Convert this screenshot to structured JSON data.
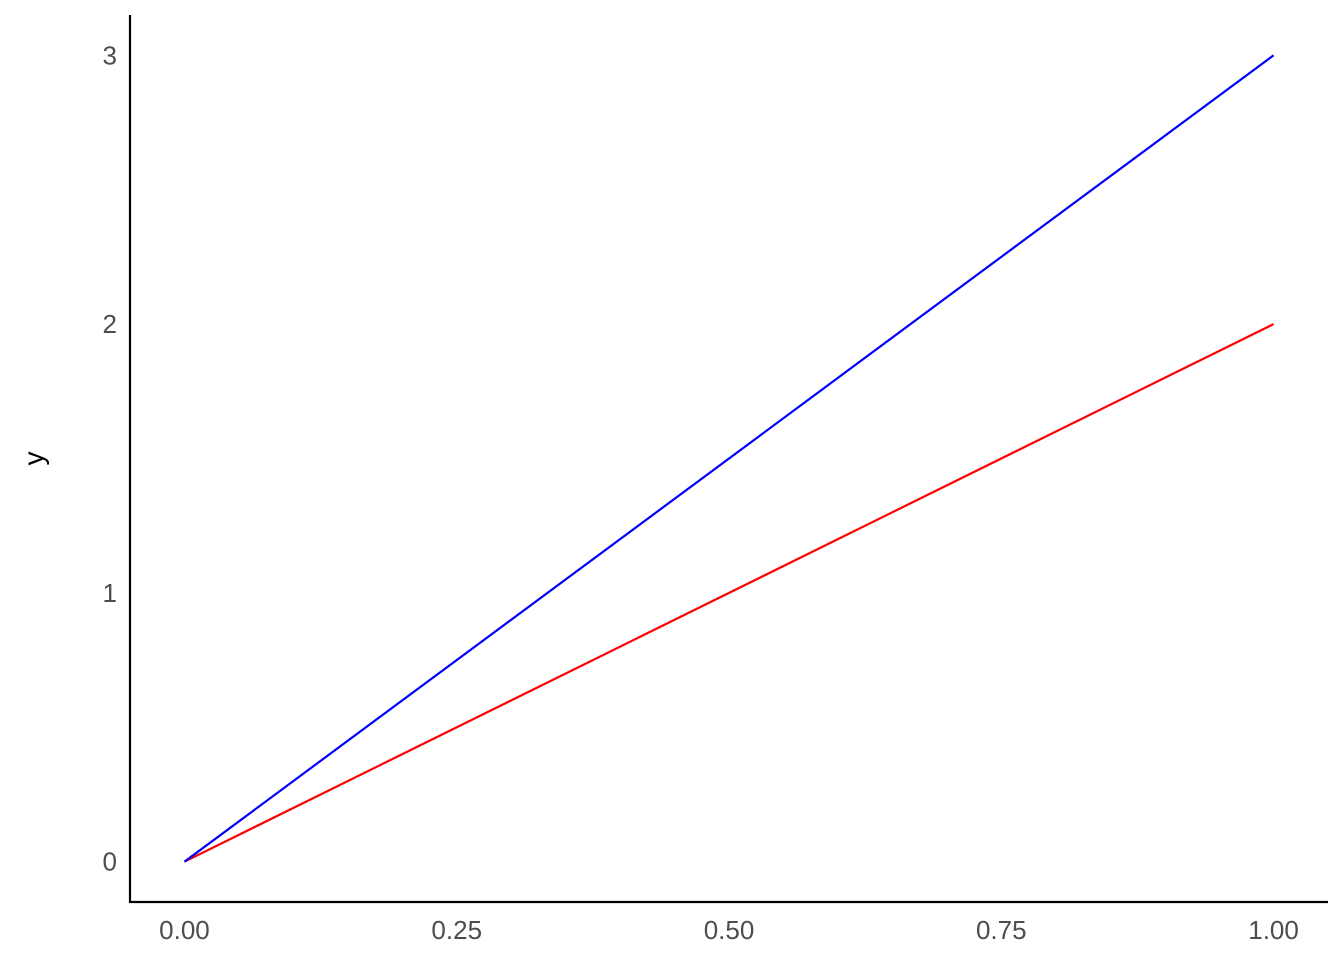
{
  "chart_data": {
    "type": "line",
    "title": "",
    "xlabel": "",
    "ylabel": "y",
    "xlim": [
      -0.05,
      1.05
    ],
    "ylim": [
      -0.15,
      3.15
    ],
    "x_ticks": [
      0,
      0.25,
      0.5,
      0.75,
      1
    ],
    "x_tick_labels": [
      "0.00",
      "0.25",
      "0.50",
      "0.75",
      "1.00"
    ],
    "y_ticks": [
      0,
      1,
      2,
      3
    ],
    "y_tick_labels": [
      "0",
      "1",
      "2",
      "3"
    ],
    "grid": false,
    "legend": "none",
    "series": [
      {
        "color": "#ff0000",
        "x": [
          0,
          1
        ],
        "y": [
          0,
          2
        ]
      },
      {
        "color": "#0000ff",
        "x": [
          0,
          1
        ],
        "y": [
          0,
          3
        ]
      }
    ]
  }
}
